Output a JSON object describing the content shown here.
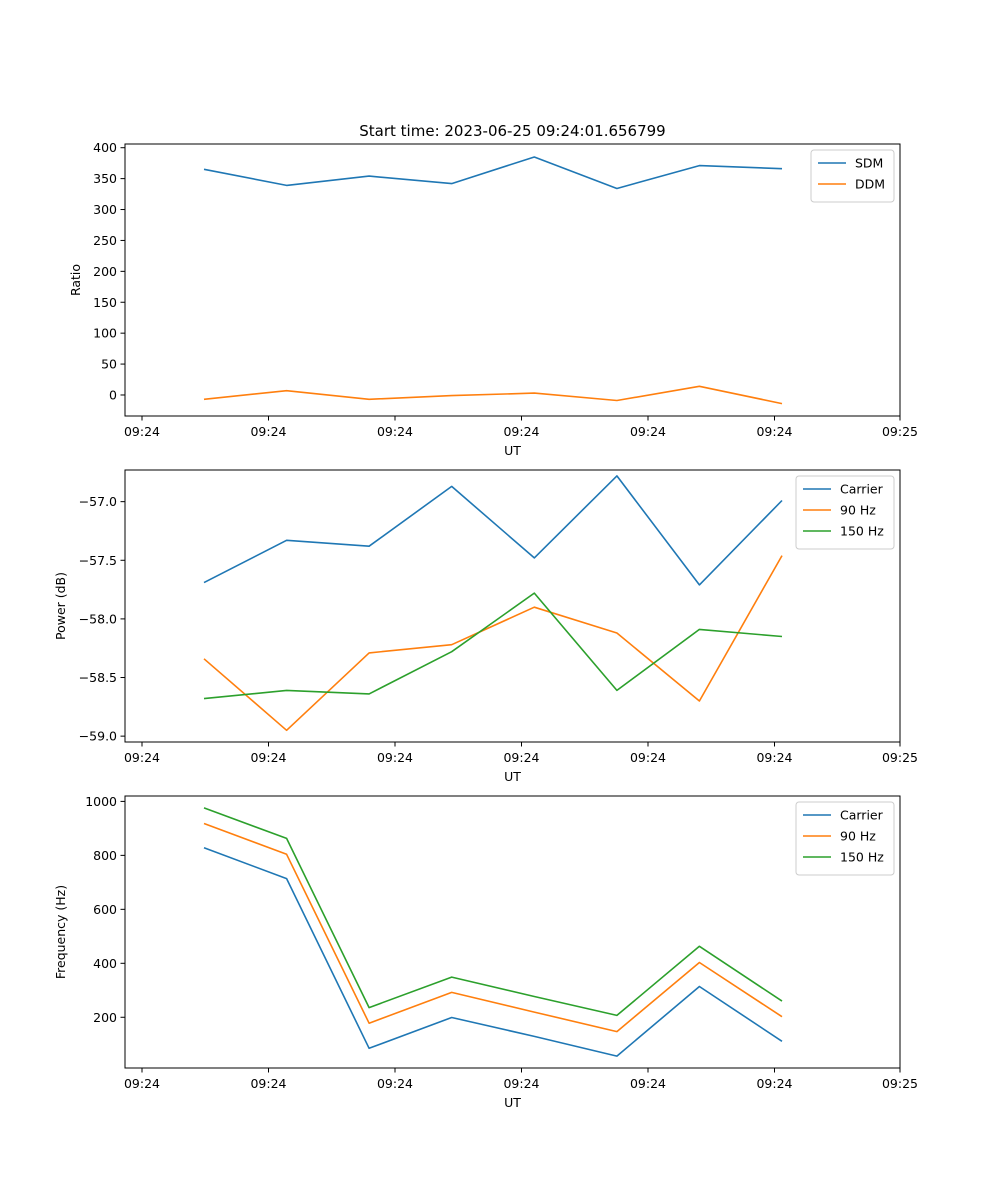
{
  "figure": {
    "title": "Start time: 2023-06-25 09:24:01.656799",
    "background": "#ffffff"
  },
  "chart_data": [
    {
      "type": "line",
      "xlabel": "UT",
      "ylabel": "Ratio",
      "xticks": [
        "09:24",
        "09:24",
        "09:24",
        "09:24",
        "09:24",
        "09:24",
        "09:25"
      ],
      "yticks": [
        0,
        50,
        100,
        150,
        200,
        250,
        300,
        350,
        400
      ],
      "ylim": [
        -34,
        406
      ],
      "legend": "top-right",
      "x": [
        1,
        2,
        3,
        4,
        5,
        6,
        7,
        8
      ],
      "series": [
        {
          "name": "SDM",
          "color": "#1f77b4",
          "values": [
            365,
            339,
            354,
            342,
            385,
            334,
            371,
            366
          ]
        },
        {
          "name": "DDM",
          "color": "#ff7f0e",
          "values": [
            -7,
            7,
            -7,
            -1,
            3,
            -9,
            14,
            -14
          ]
        }
      ]
    },
    {
      "type": "line",
      "xlabel": "UT",
      "ylabel": "Power (dB)",
      "xticks": [
        "09:24",
        "09:24",
        "09:24",
        "09:24",
        "09:24",
        "09:24",
        "09:25"
      ],
      "yticks": [
        -59.0,
        -58.5,
        -58.0,
        -57.5,
        -57.0
      ],
      "ylim": [
        -59.05,
        -56.73
      ],
      "legend": "top-right",
      "x": [
        1,
        2,
        3,
        4,
        5,
        6,
        7,
        8
      ],
      "series": [
        {
          "name": "Carrier",
          "color": "#1f77b4",
          "values": [
            -57.69,
            -57.33,
            -57.38,
            -56.87,
            -57.48,
            -56.78,
            -57.71,
            -56.99
          ]
        },
        {
          "name": "90 Hz",
          "color": "#ff7f0e",
          "values": [
            -58.34,
            -58.95,
            -58.29,
            -58.22,
            -57.9,
            -58.12,
            -58.7,
            -57.46
          ]
        },
        {
          "name": "150 Hz",
          "color": "#2ca02c",
          "values": [
            -58.68,
            -58.61,
            -58.64,
            -58.28,
            -57.78,
            -58.61,
            -58.09,
            -58.15
          ]
        }
      ]
    },
    {
      "type": "line",
      "xlabel": "UT",
      "ylabel": "Frequency (Hz)",
      "xticks": [
        "09:24",
        "09:24",
        "09:24",
        "09:24",
        "09:24",
        "09:24",
        "09:25"
      ],
      "yticks": [
        200,
        400,
        600,
        800,
        1000
      ],
      "ylim": [
        12,
        1020
      ],
      "legend": "top-right",
      "x": [
        1,
        2,
        3,
        4,
        5,
        6,
        7,
        8
      ],
      "series": [
        {
          "name": "Carrier",
          "color": "#1f77b4",
          "values": [
            828,
            714,
            85,
            199,
            129,
            56,
            314,
            111
          ]
        },
        {
          "name": "90 Hz",
          "color": "#ff7f0e",
          "values": [
            918,
            804,
            178,
            292,
            219,
            147,
            403,
            202
          ]
        },
        {
          "name": "150 Hz",
          "color": "#2ca02c",
          "values": [
            976,
            863,
            236,
            349,
            277,
            207,
            463,
            260
          ]
        }
      ]
    }
  ]
}
